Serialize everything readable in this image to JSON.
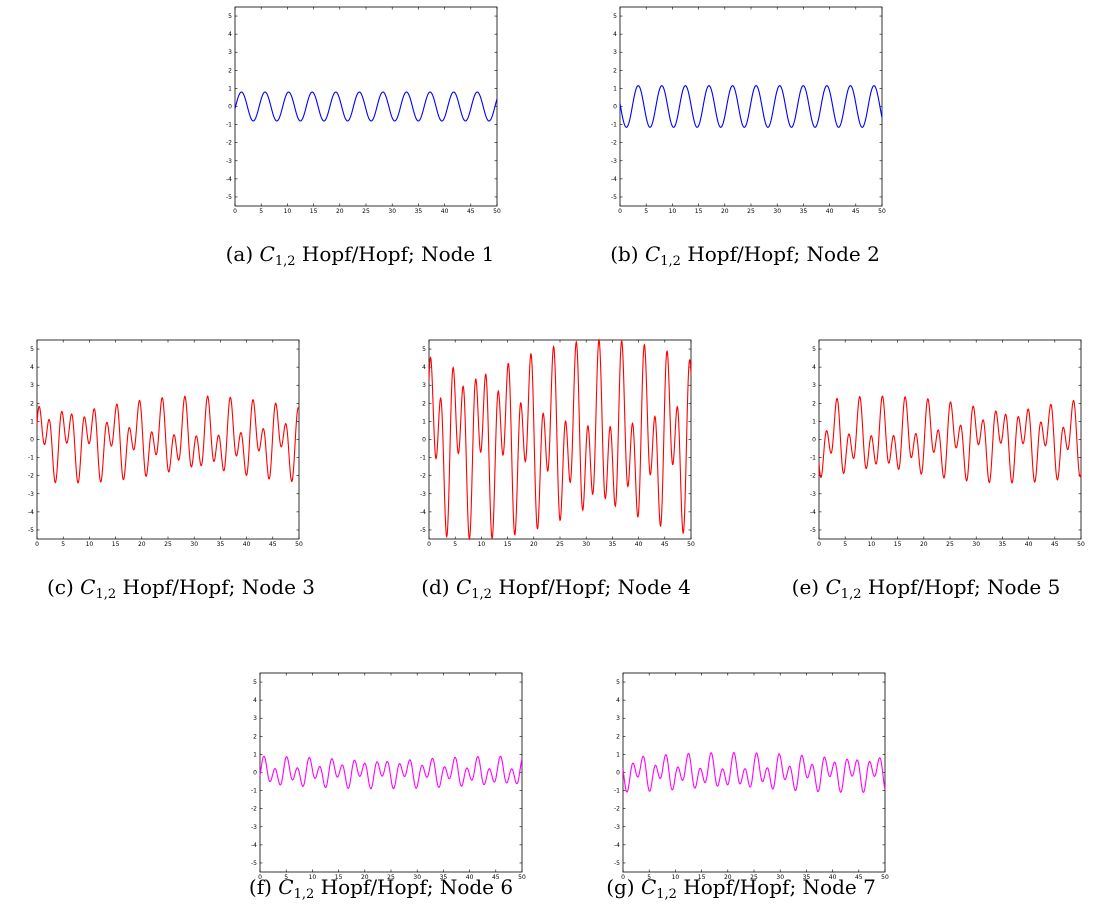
{
  "chart_data": [
    {
      "type": "line",
      "label": "(a)",
      "symbol": "C",
      "subscript": "1,2",
      "text": "Hopf/Hopf; Node 1",
      "xlim": [
        0,
        50
      ],
      "ylim": [
        -5.5,
        5.5
      ],
      "xticks": [
        0,
        5,
        10,
        15,
        20,
        25,
        30,
        35,
        40,
        45,
        50
      ],
      "yticks": [
        -5,
        -4,
        -3,
        -2,
        -1,
        0,
        1,
        2,
        3,
        4,
        5
      ],
      "color": "#0000ff",
      "series": [
        {
          "components": [
            {
              "amp": 0.8,
              "period": 4.5,
              "phase": -0.15
            }
          ]
        }
      ]
    },
    {
      "type": "line",
      "label": "(b)",
      "symbol": "C",
      "subscript": "1,2",
      "text": "Hopf/Hopf; Node 2",
      "xlim": [
        0,
        50
      ],
      "ylim": [
        -5.5,
        5.5
      ],
      "xticks": [
        0,
        5,
        10,
        15,
        20,
        25,
        30,
        35,
        40,
        45,
        50
      ],
      "yticks": [
        -5,
        -4,
        -3,
        -2,
        -1,
        0,
        1,
        2,
        3,
        4,
        5
      ],
      "color": "#0000ff",
      "series": [
        {
          "components": [
            {
              "amp": 1.15,
              "period": 4.5,
              "phase": 3.0
            }
          ]
        }
      ]
    },
    {
      "type": "line",
      "label": "(c)",
      "symbol": "C",
      "subscript": "1,2",
      "text": "Hopf/Hopf; Node 3",
      "xlim": [
        0,
        50
      ],
      "ylim": [
        -5.5,
        5.5
      ],
      "xticks": [
        0,
        5,
        10,
        15,
        20,
        25,
        30,
        35,
        40,
        45,
        50
      ],
      "yticks": [
        -5,
        -4,
        -3,
        -2,
        -1,
        0,
        1,
        2,
        3,
        4,
        5
      ],
      "color": "#ff0000",
      "series": [
        {
          "components": [
            {
              "amp": 1.1,
              "period": 4.5,
              "phase": 0.0
            },
            {
              "amp": 1.3,
              "period": 2.15,
              "phase": 0.7
            }
          ]
        }
      ]
    },
    {
      "type": "line",
      "label": "(d)",
      "symbol": "C",
      "subscript": "1,2",
      "text": "Hopf/Hopf; Node 4",
      "xlim": [
        0,
        50
      ],
      "ylim": [
        -5.5,
        5.5
      ],
      "xticks": [
        0,
        5,
        10,
        15,
        20,
        25,
        30,
        35,
        40,
        45,
        50
      ],
      "yticks": [
        -5,
        -4,
        -3,
        -2,
        -1,
        0,
        1,
        2,
        3,
        4,
        5
      ],
      "color": "#ff0000",
      "series": [
        {
          "components": [
            {
              "amp": 2.4,
              "period": 4.5,
              "phase": 0.3
            },
            {
              "amp": 3.1,
              "period": 2.15,
              "phase": 1.0
            }
          ]
        }
      ]
    },
    {
      "type": "line",
      "label": "(e)",
      "symbol": "C",
      "subscript": "1,2",
      "text": "Hopf/Hopf; Node 5",
      "xlim": [
        0,
        50
      ],
      "ylim": [
        -5.5,
        5.5
      ],
      "xticks": [
        0,
        5,
        10,
        15,
        20,
        25,
        30,
        35,
        40,
        45,
        50
      ],
      "yticks": [
        -5,
        -4,
        -3,
        -2,
        -1,
        0,
        1,
        2,
        3,
        4,
        5
      ],
      "color": "#ff0000",
      "series": [
        {
          "components": [
            {
              "amp": 1.1,
              "period": 4.5,
              "phase": 3.5
            },
            {
              "amp": 1.3,
              "period": 2.15,
              "phase": 3.9
            }
          ]
        }
      ]
    },
    {
      "type": "line",
      "label": "(f)",
      "symbol": "C",
      "subscript": "1,2",
      "text": "Hopf/Hopf; Node 6",
      "xlim": [
        0,
        50
      ],
      "ylim": [
        -5.5,
        5.5
      ],
      "xticks": [
        0,
        5,
        10,
        15,
        20,
        25,
        30,
        35,
        40,
        45,
        50
      ],
      "yticks": [
        -5,
        -4,
        -3,
        -2,
        -1,
        0,
        1,
        2,
        3,
        4,
        5
      ],
      "color": "#ff00ff",
      "series": [
        {
          "components": [
            {
              "amp": 0.35,
              "period": 4.5,
              "phase": 0.4
            },
            {
              "amp": 0.55,
              "period": 2.15,
              "phase": -0.6
            }
          ]
        }
      ]
    },
    {
      "type": "line",
      "label": "(g)",
      "symbol": "C",
      "subscript": "1,2",
      "text": "Hopf/Hopf; Node 7",
      "xlim": [
        0,
        50
      ],
      "ylim": [
        -5.5,
        5.5
      ],
      "xticks": [
        0,
        5,
        10,
        15,
        20,
        25,
        30,
        35,
        40,
        45,
        50
      ],
      "yticks": [
        -5,
        -4,
        -3,
        -2,
        -1,
        0,
        1,
        2,
        3,
        4,
        5
      ],
      "color": "#ff00ff",
      "series": [
        {
          "components": [
            {
              "amp": 0.45,
              "period": 4.5,
              "phase": 3.4
            },
            {
              "amp": 0.65,
              "period": 2.15,
              "phase": 2.6
            }
          ]
        }
      ]
    }
  ]
}
